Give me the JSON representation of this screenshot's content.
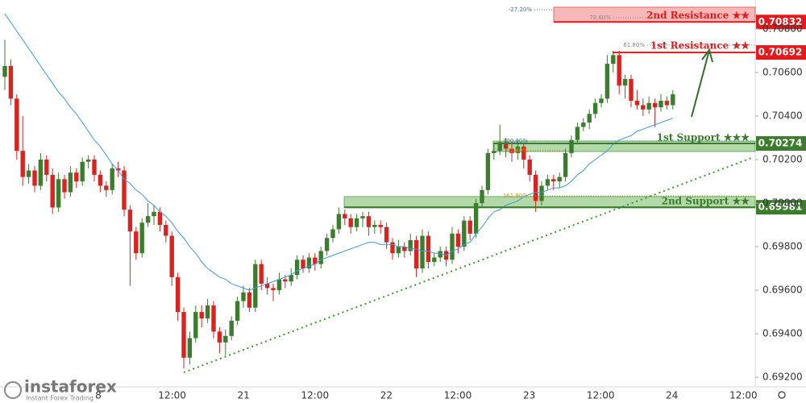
{
  "chart_data": {
    "type": "candlestick",
    "up_color": "#3b7d2c",
    "down_color": "#d9231f",
    "ylim": [
      0.69156,
      0.70933
    ],
    "yticks": [
      {
        "value": 0.692,
        "label": "0.69200"
      },
      {
        "value": 0.694,
        "label": "0.69400"
      },
      {
        "value": 0.696,
        "label": "0.69600"
      },
      {
        "value": 0.698,
        "label": "0.69800"
      },
      {
        "value": 0.7,
        "label": "0.70000"
      },
      {
        "value": 0.702,
        "label": "0.70200"
      },
      {
        "value": 0.704,
        "label": "0.70400"
      },
      {
        "value": 0.706,
        "label": "0.70600"
      },
      {
        "value": 0.708,
        "label": "0.70800"
      }
    ],
    "x_labels": [
      "8",
      "12:00",
      "21",
      "12:00",
      "22",
      "12:00",
      "23",
      "12:00",
      "24",
      "12:00"
    ],
    "candles": [
      [
        0.7058,
        0.7075,
        0.7052,
        0.7063
      ],
      [
        0.7063,
        0.7066,
        0.7045,
        0.7048
      ],
      [
        0.7048,
        0.705,
        0.702,
        0.7024
      ],
      [
        0.7024,
        0.704,
        0.7008,
        0.7012
      ],
      [
        0.7012,
        0.7018,
        0.7009,
        0.7015
      ],
      [
        0.7015,
        0.7017,
        0.7005,
        0.7008
      ],
      [
        0.7008,
        0.7023,
        0.7006,
        0.702
      ],
      [
        0.702,
        0.7022,
        0.701,
        0.7013
      ],
      [
        0.7013,
        0.7016,
        0.6995,
        0.6998
      ],
      [
        0.6998,
        0.7014,
        0.6996,
        0.7011
      ],
      [
        0.7011,
        0.7013,
        0.7002,
        0.7005
      ],
      [
        0.7005,
        0.7017,
        0.7003,
        0.7014
      ],
      [
        0.7014,
        0.7016,
        0.7007,
        0.701
      ],
      [
        0.701,
        0.7021,
        0.7008,
        0.7019
      ],
      [
        0.7019,
        0.7022,
        0.7016,
        0.702
      ],
      [
        0.702,
        0.7022,
        0.701,
        0.7013
      ],
      [
        0.7013,
        0.7015,
        0.7005,
        0.7008
      ],
      [
        0.7008,
        0.701,
        0.7003,
        0.7006
      ],
      [
        0.7006,
        0.7018,
        0.7004,
        0.7016
      ],
      [
        0.7016,
        0.7019,
        0.7012,
        0.7015
      ],
      [
        0.7015,
        0.7017,
        0.6994,
        0.6997
      ],
      [
        0.6997,
        0.6999,
        0.6962,
        0.6987
      ],
      [
        0.6987,
        0.6989,
        0.6974,
        0.6977
      ],
      [
        0.6977,
        0.6993,
        0.6975,
        0.6991
      ],
      [
        0.6991,
        0.7,
        0.6989,
        0.6994
      ],
      [
        0.6994,
        0.6999,
        0.699,
        0.6996
      ],
      [
        0.6996,
        0.6998,
        0.6987,
        0.699
      ],
      [
        0.699,
        0.6992,
        0.6982,
        0.6985
      ],
      [
        0.6985,
        0.6987,
        0.6962,
        0.6966
      ],
      [
        0.6966,
        0.6968,
        0.6946,
        0.695
      ],
      [
        0.695,
        0.6952,
        0.6924,
        0.6929
      ],
      [
        0.6929,
        0.6941,
        0.6926,
        0.6938
      ],
      [
        0.6938,
        0.6953,
        0.6936,
        0.695
      ],
      [
        0.695,
        0.6953,
        0.6943,
        0.6947
      ],
      [
        0.6947,
        0.6956,
        0.6945,
        0.6953
      ],
      [
        0.6953,
        0.6955,
        0.6938,
        0.6941
      ],
      [
        0.6941,
        0.6943,
        0.6931,
        0.6936
      ],
      [
        0.6936,
        0.6942,
        0.693,
        0.6939
      ],
      [
        0.6939,
        0.6948,
        0.6937,
        0.6946
      ],
      [
        0.6946,
        0.6957,
        0.6944,
        0.6955
      ],
      [
        0.6955,
        0.6962,
        0.6952,
        0.6959
      ],
      [
        0.6959,
        0.6961,
        0.695,
        0.6952
      ],
      [
        0.6952,
        0.6974,
        0.695,
        0.6972
      ],
      [
        0.6972,
        0.6974,
        0.696,
        0.6963
      ],
      [
        0.6963,
        0.6966,
        0.6958,
        0.6961
      ],
      [
        0.6961,
        0.6963,
        0.6955,
        0.696
      ],
      [
        0.696,
        0.6968,
        0.6958,
        0.6965
      ],
      [
        0.6965,
        0.6967,
        0.6961,
        0.6964
      ],
      [
        0.6964,
        0.697,
        0.6962,
        0.6967
      ],
      [
        0.6967,
        0.6976,
        0.6965,
        0.6974
      ],
      [
        0.6974,
        0.6976,
        0.6968,
        0.697
      ],
      [
        0.697,
        0.6977,
        0.6968,
        0.6975
      ],
      [
        0.6975,
        0.6977,
        0.6969,
        0.6972
      ],
      [
        0.6972,
        0.698,
        0.697,
        0.6978
      ],
      [
        0.6978,
        0.6986,
        0.6976,
        0.6984
      ],
      [
        0.6984,
        0.699,
        0.6982,
        0.6988
      ],
      [
        0.6988,
        0.6998,
        0.6986,
        0.6995
      ],
      [
        0.6995,
        0.6997,
        0.699,
        0.6993
      ],
      [
        0.6993,
        0.6995,
        0.6986,
        0.6989
      ],
      [
        0.6989,
        0.6995,
        0.6987,
        0.6993
      ],
      [
        0.6993,
        0.6996,
        0.6989,
        0.6994
      ],
      [
        0.6994,
        0.6996,
        0.6985,
        0.6989
      ],
      [
        0.6989,
        0.6992,
        0.6986,
        0.699
      ],
      [
        0.699,
        0.6992,
        0.6986,
        0.6989
      ],
      [
        0.6989,
        0.6991,
        0.6979,
        0.6982
      ],
      [
        0.6982,
        0.6984,
        0.6974,
        0.6977
      ],
      [
        0.6977,
        0.6983,
        0.6975,
        0.698
      ],
      [
        0.698,
        0.6982,
        0.6975,
        0.6978
      ],
      [
        0.6978,
        0.6986,
        0.6976,
        0.6983
      ],
      [
        0.6983,
        0.6985,
        0.6966,
        0.697
      ],
      [
        0.697,
        0.6988,
        0.6968,
        0.6985
      ],
      [
        0.6985,
        0.6987,
        0.697,
        0.6973
      ],
      [
        0.6973,
        0.6977,
        0.6971,
        0.6975
      ],
      [
        0.6975,
        0.698,
        0.6973,
        0.6978
      ],
      [
        0.6978,
        0.698,
        0.6971,
        0.6974
      ],
      [
        0.6974,
        0.6989,
        0.6972,
        0.6986
      ],
      [
        0.6986,
        0.6988,
        0.6977,
        0.698
      ],
      [
        0.698,
        0.6994,
        0.6978,
        0.6992
      ],
      [
        0.6992,
        0.6994,
        0.6983,
        0.6986
      ],
      [
        0.6986,
        0.7002,
        0.6984,
        0.7
      ],
      [
        0.7,
        0.7008,
        0.6998,
        0.7006
      ],
      [
        0.7006,
        0.7025,
        0.7004,
        0.7023
      ],
      [
        0.7023,
        0.7027,
        0.702,
        0.7024
      ],
      [
        0.7024,
        0.7036,
        0.7022,
        0.7028
      ],
      [
        0.7028,
        0.703,
        0.7021,
        0.7025
      ],
      [
        0.7025,
        0.7027,
        0.7019,
        0.7023
      ],
      [
        0.7023,
        0.7029,
        0.702,
        0.7026
      ],
      [
        0.7026,
        0.7028,
        0.7016,
        0.702
      ],
      [
        0.702,
        0.7022,
        0.701,
        0.7013
      ],
      [
        0.7013,
        0.7015,
        0.6996,
        0.7001
      ],
      [
        0.7001,
        0.701,
        0.6999,
        0.7008
      ],
      [
        0.7008,
        0.7013,
        0.7006,
        0.7011
      ],
      [
        0.7011,
        0.7013,
        0.7006,
        0.701
      ],
      [
        0.701,
        0.7014,
        0.7007,
        0.7012
      ],
      [
        0.7012,
        0.7025,
        0.701,
        0.7023
      ],
      [
        0.7023,
        0.7031,
        0.7021,
        0.7029
      ],
      [
        0.7029,
        0.7037,
        0.7027,
        0.7035
      ],
      [
        0.7035,
        0.7039,
        0.7033,
        0.7037
      ],
      [
        0.7037,
        0.7043,
        0.7034,
        0.7041
      ],
      [
        0.7041,
        0.7048,
        0.7039,
        0.7046
      ],
      [
        0.7046,
        0.705,
        0.7044,
        0.7048
      ],
      [
        0.7048,
        0.7068,
        0.7046,
        0.7064
      ],
      [
        0.7064,
        0.707,
        0.706,
        0.7068
      ],
      [
        0.7068,
        0.707,
        0.705,
        0.7054
      ],
      [
        0.7054,
        0.7059,
        0.7048,
        0.7057
      ],
      [
        0.7057,
        0.7059,
        0.7044,
        0.7047
      ],
      [
        0.7047,
        0.7052,
        0.7043,
        0.7045
      ],
      [
        0.7045,
        0.7048,
        0.704,
        0.7043
      ],
      [
        0.7043,
        0.7049,
        0.7041,
        0.7046
      ],
      [
        0.7046,
        0.7048,
        0.7035,
        0.7044
      ],
      [
        0.7044,
        0.705,
        0.7042,
        0.7047
      ],
      [
        0.7047,
        0.7049,
        0.7043,
        0.7045
      ],
      [
        0.7045,
        0.7052,
        0.7043,
        0.705
      ]
    ],
    "ma": {
      "color": "#3c9be0",
      "values": [
        0.7087,
        0.7083,
        0.7079,
        0.7075,
        0.7071,
        0.7067,
        0.7063,
        0.7059,
        0.7055,
        0.7051,
        0.7048,
        0.7044,
        0.7041,
        0.7037,
        0.7033,
        0.7029,
        0.7026,
        0.7022,
        0.7018,
        0.7015,
        0.7011,
        0.7009,
        0.7006,
        0.7004,
        0.7001,
        0.6999,
        0.6996,
        0.6994,
        0.6991,
        0.6987,
        0.6984,
        0.698,
        0.6977,
        0.6973,
        0.697,
        0.6968,
        0.6966,
        0.6965,
        0.6963,
        0.6962,
        0.6961,
        0.696,
        0.6961,
        0.6962,
        0.6963,
        0.6964,
        0.6965,
        0.6966,
        0.6967,
        0.6969,
        0.697,
        0.6971,
        0.6972,
        0.6974,
        0.6975,
        0.6976,
        0.6977,
        0.6978,
        0.6979,
        0.698,
        0.6981,
        0.6982,
        0.6982,
        0.6981,
        0.6981,
        0.6981,
        0.698,
        0.698,
        0.6979,
        0.6979,
        0.6978,
        0.6978,
        0.6977,
        0.6977,
        0.6976,
        0.6978,
        0.6979,
        0.6981,
        0.6982,
        0.6986,
        0.6989,
        0.6993,
        0.6996,
        0.6997,
        0.6999,
        0.7,
        0.7001,
        0.7003,
        0.7004,
        0.7005,
        0.7005,
        0.7006,
        0.7007,
        0.7007,
        0.7008,
        0.701,
        0.7013,
        0.7015,
        0.7018,
        0.702,
        0.7022,
        0.7024,
        0.7027,
        0.7029,
        0.703,
        0.7031,
        0.7033,
        0.7034,
        0.7035,
        0.7036,
        0.7037,
        0.7038,
        0.7039
      ]
    },
    "levels": [
      {
        "name": "2nd Resistance ★★",
        "price": 0.70832,
        "zone": [
          0.70832,
          0.709
        ],
        "color": "#e3191b",
        "zone_color": "#f4a7a5"
      },
      {
        "name": "1st Resistance ★★",
        "price": 0.70692,
        "color": "#e3191b"
      },
      {
        "name": "1st Support ★★★",
        "price": 0.70274,
        "zone": [
          0.70237,
          0.70285
        ],
        "color": "#3b7d2c",
        "zone_color": "#9fcf92"
      },
      {
        "name": "2nd Support ★★",
        "price": 0.69981,
        "zone": [
          0.69978,
          0.7003
        ],
        "color": "#3b7d2c",
        "zone_color": "#9fcf92"
      }
    ],
    "fib_labels": [
      "-27.20%",
      "78.60%",
      "61.80%",
      "100.00%",
      "61.80%",
      "161.80%"
    ]
  },
  "logo": {
    "name": "instaforex",
    "tagline": "Instant Forex Trading"
  }
}
